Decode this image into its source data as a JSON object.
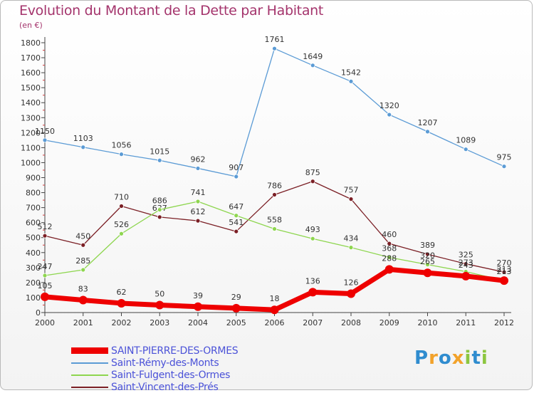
{
  "title": "Evolution du Montant de la Dette par Habitant",
  "unit_label": "(en €)",
  "logo": {
    "letters": [
      {
        "ch": "P",
        "color": "#2f8ccf"
      },
      {
        "ch": "r",
        "color": "#f2a22a"
      },
      {
        "ch": "o",
        "color": "#2f8ccf"
      },
      {
        "ch": "x",
        "color": "#f2a22a"
      },
      {
        "ch": "i",
        "color": "#8cc63f"
      },
      {
        "ch": "t",
        "color": "#2f8ccf"
      },
      {
        "ch": "i",
        "color": "#8cc63f"
      }
    ]
  },
  "chart_data": {
    "type": "line",
    "title": "Evolution du Montant de la Dette par Habitant",
    "ylabel": "(en €)",
    "x": [
      2000,
      2001,
      2002,
      2003,
      2004,
      2005,
      2006,
      2007,
      2008,
      2009,
      2010,
      2011,
      2012
    ],
    "xlim": [
      2000,
      2012
    ],
    "ylim": [
      0,
      1800
    ],
    "yticks": [
      0,
      100,
      200,
      300,
      400,
      500,
      600,
      700,
      800,
      900,
      1000,
      1100,
      1200,
      1300,
      1400,
      1500,
      1600,
      1700,
      1800
    ],
    "grid": false,
    "legend_position": "bottom-left",
    "series": [
      {
        "name": "Saint-Rémy-des-Monts",
        "color": "#5b9bd5",
        "values": [
          1150,
          1103,
          1056,
          1015,
          962,
          907,
          1761,
          1649,
          1542,
          1320,
          1207,
          1089,
          975
        ]
      },
      {
        "name": "Saint-Vincent-des-Prés",
        "color": "#7b1f25",
        "values": [
          512,
          450,
          710,
          637,
          612,
          541,
          786,
          875,
          757,
          460,
          389,
          325,
          270
        ]
      },
      {
        "name": "Saint-Fulgent-des-Ormes",
        "color": "#8ed64f",
        "values": [
          247,
          285,
          526,
          686,
          741,
          647,
          558,
          493,
          434,
          368,
          320,
          273,
          213
        ]
      },
      {
        "name": "SAINT-PIERRE-DES-ORMES",
        "color": "#ee0000",
        "values": [
          105,
          83,
          62,
          50,
          39,
          29,
          18,
          136,
          126,
          288,
          265,
          243,
          213
        ]
      }
    ],
    "legend_order": [
      "SAINT-PIERRE-DES-ORMES",
      "Saint-Rémy-des-Monts",
      "Saint-Fulgent-des-Ormes",
      "Saint-Vincent-des-Prés"
    ]
  }
}
